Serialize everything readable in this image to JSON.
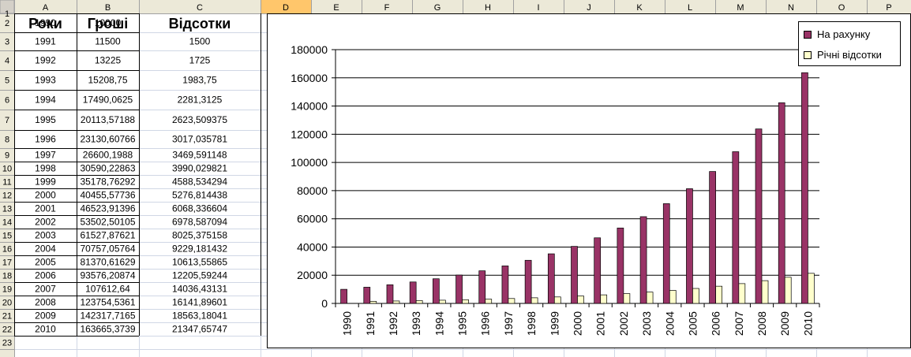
{
  "columns": [
    "A",
    "B",
    "C",
    "D",
    "E",
    "F",
    "G",
    "H",
    "I",
    "J",
    "K",
    "L",
    "M",
    "N",
    "O",
    "P"
  ],
  "rows": [
    "1",
    "2",
    "3",
    "4",
    "5",
    "6",
    "7",
    "8",
    "9",
    "10",
    "11",
    "12",
    "13",
    "14",
    "15",
    "16",
    "17",
    "18",
    "19",
    "20",
    "21",
    "22",
    "23"
  ],
  "selected_column": "D",
  "headers": {
    "year": "Роки",
    "money": "Гроші",
    "interest": "Відсотки"
  },
  "table": [
    [
      "1990",
      "10000",
      ""
    ],
    [
      "1991",
      "11500",
      "1500"
    ],
    [
      "1992",
      "13225",
      "1725"
    ],
    [
      "1993",
      "15208,75",
      "1983,75"
    ],
    [
      "1994",
      "17490,0625",
      "2281,3125"
    ],
    [
      "1995",
      "20113,57188",
      "2623,509375"
    ],
    [
      "1996",
      "23130,60766",
      "3017,035781"
    ],
    [
      "1997",
      "26600,1988",
      "3469,591148"
    ],
    [
      "1998",
      "30590,22863",
      "3990,029821"
    ],
    [
      "1999",
      "35178,76292",
      "4588,534294"
    ],
    [
      "2000",
      "40455,57736",
      "5276,814438"
    ],
    [
      "2001",
      "46523,91396",
      "6068,336604"
    ],
    [
      "2002",
      "53502,50105",
      "6978,587094"
    ],
    [
      "2003",
      "61527,87621",
      "8025,375158"
    ],
    [
      "2004",
      "70757,05764",
      "9229,181432"
    ],
    [
      "2005",
      "81370,61629",
      "10613,55865"
    ],
    [
      "2006",
      "93576,20874",
      "12205,59244"
    ],
    [
      "2007",
      "107612,64",
      "14036,43131"
    ],
    [
      "2008",
      "123754,5361",
      "16141,89601"
    ],
    [
      "2009",
      "142317,7165",
      "18563,18041"
    ],
    [
      "2010",
      "163665,3739",
      "21347,65747"
    ]
  ],
  "chart_data": {
    "type": "bar",
    "categories": [
      "1990",
      "1991",
      "1992",
      "1993",
      "1994",
      "1995",
      "1996",
      "1997",
      "1998",
      "1999",
      "2000",
      "2001",
      "2002",
      "2003",
      "2004",
      "2005",
      "2006",
      "2007",
      "2008",
      "2009",
      "2010"
    ],
    "series": [
      {
        "name": "На рахунку",
        "color": "#993366",
        "values": [
          10000,
          11500,
          13225,
          15208.75,
          17490.0625,
          20113.57188,
          23130.60766,
          26600.1988,
          30590.22863,
          35178.76292,
          40455.57736,
          46523.91396,
          53502.50105,
          61527.87621,
          70757.05764,
          81370.61629,
          93576.20874,
          107612.64,
          123754.5361,
          142317.7165,
          163665.3739
        ]
      },
      {
        "name": "Річні відсотки",
        "color": "#FFFFCC",
        "values": [
          0,
          1500,
          1725,
          1983.75,
          2281.3125,
          2623.509375,
          3017.035781,
          3469.591148,
          3990.029821,
          4588.534294,
          5276.814438,
          6068.336604,
          6978.587094,
          8025.375158,
          9229.181432,
          10613.55865,
          12205.59244,
          14036.43131,
          16141.89601,
          18563.18041,
          21347.65747
        ]
      }
    ],
    "yticks": [
      "0",
      "20000",
      "40000",
      "60000",
      "80000",
      "100000",
      "120000",
      "140000",
      "160000",
      "180000"
    ],
    "ylim": [
      0,
      180000
    ],
    "grid": true,
    "legend": "top-right"
  }
}
